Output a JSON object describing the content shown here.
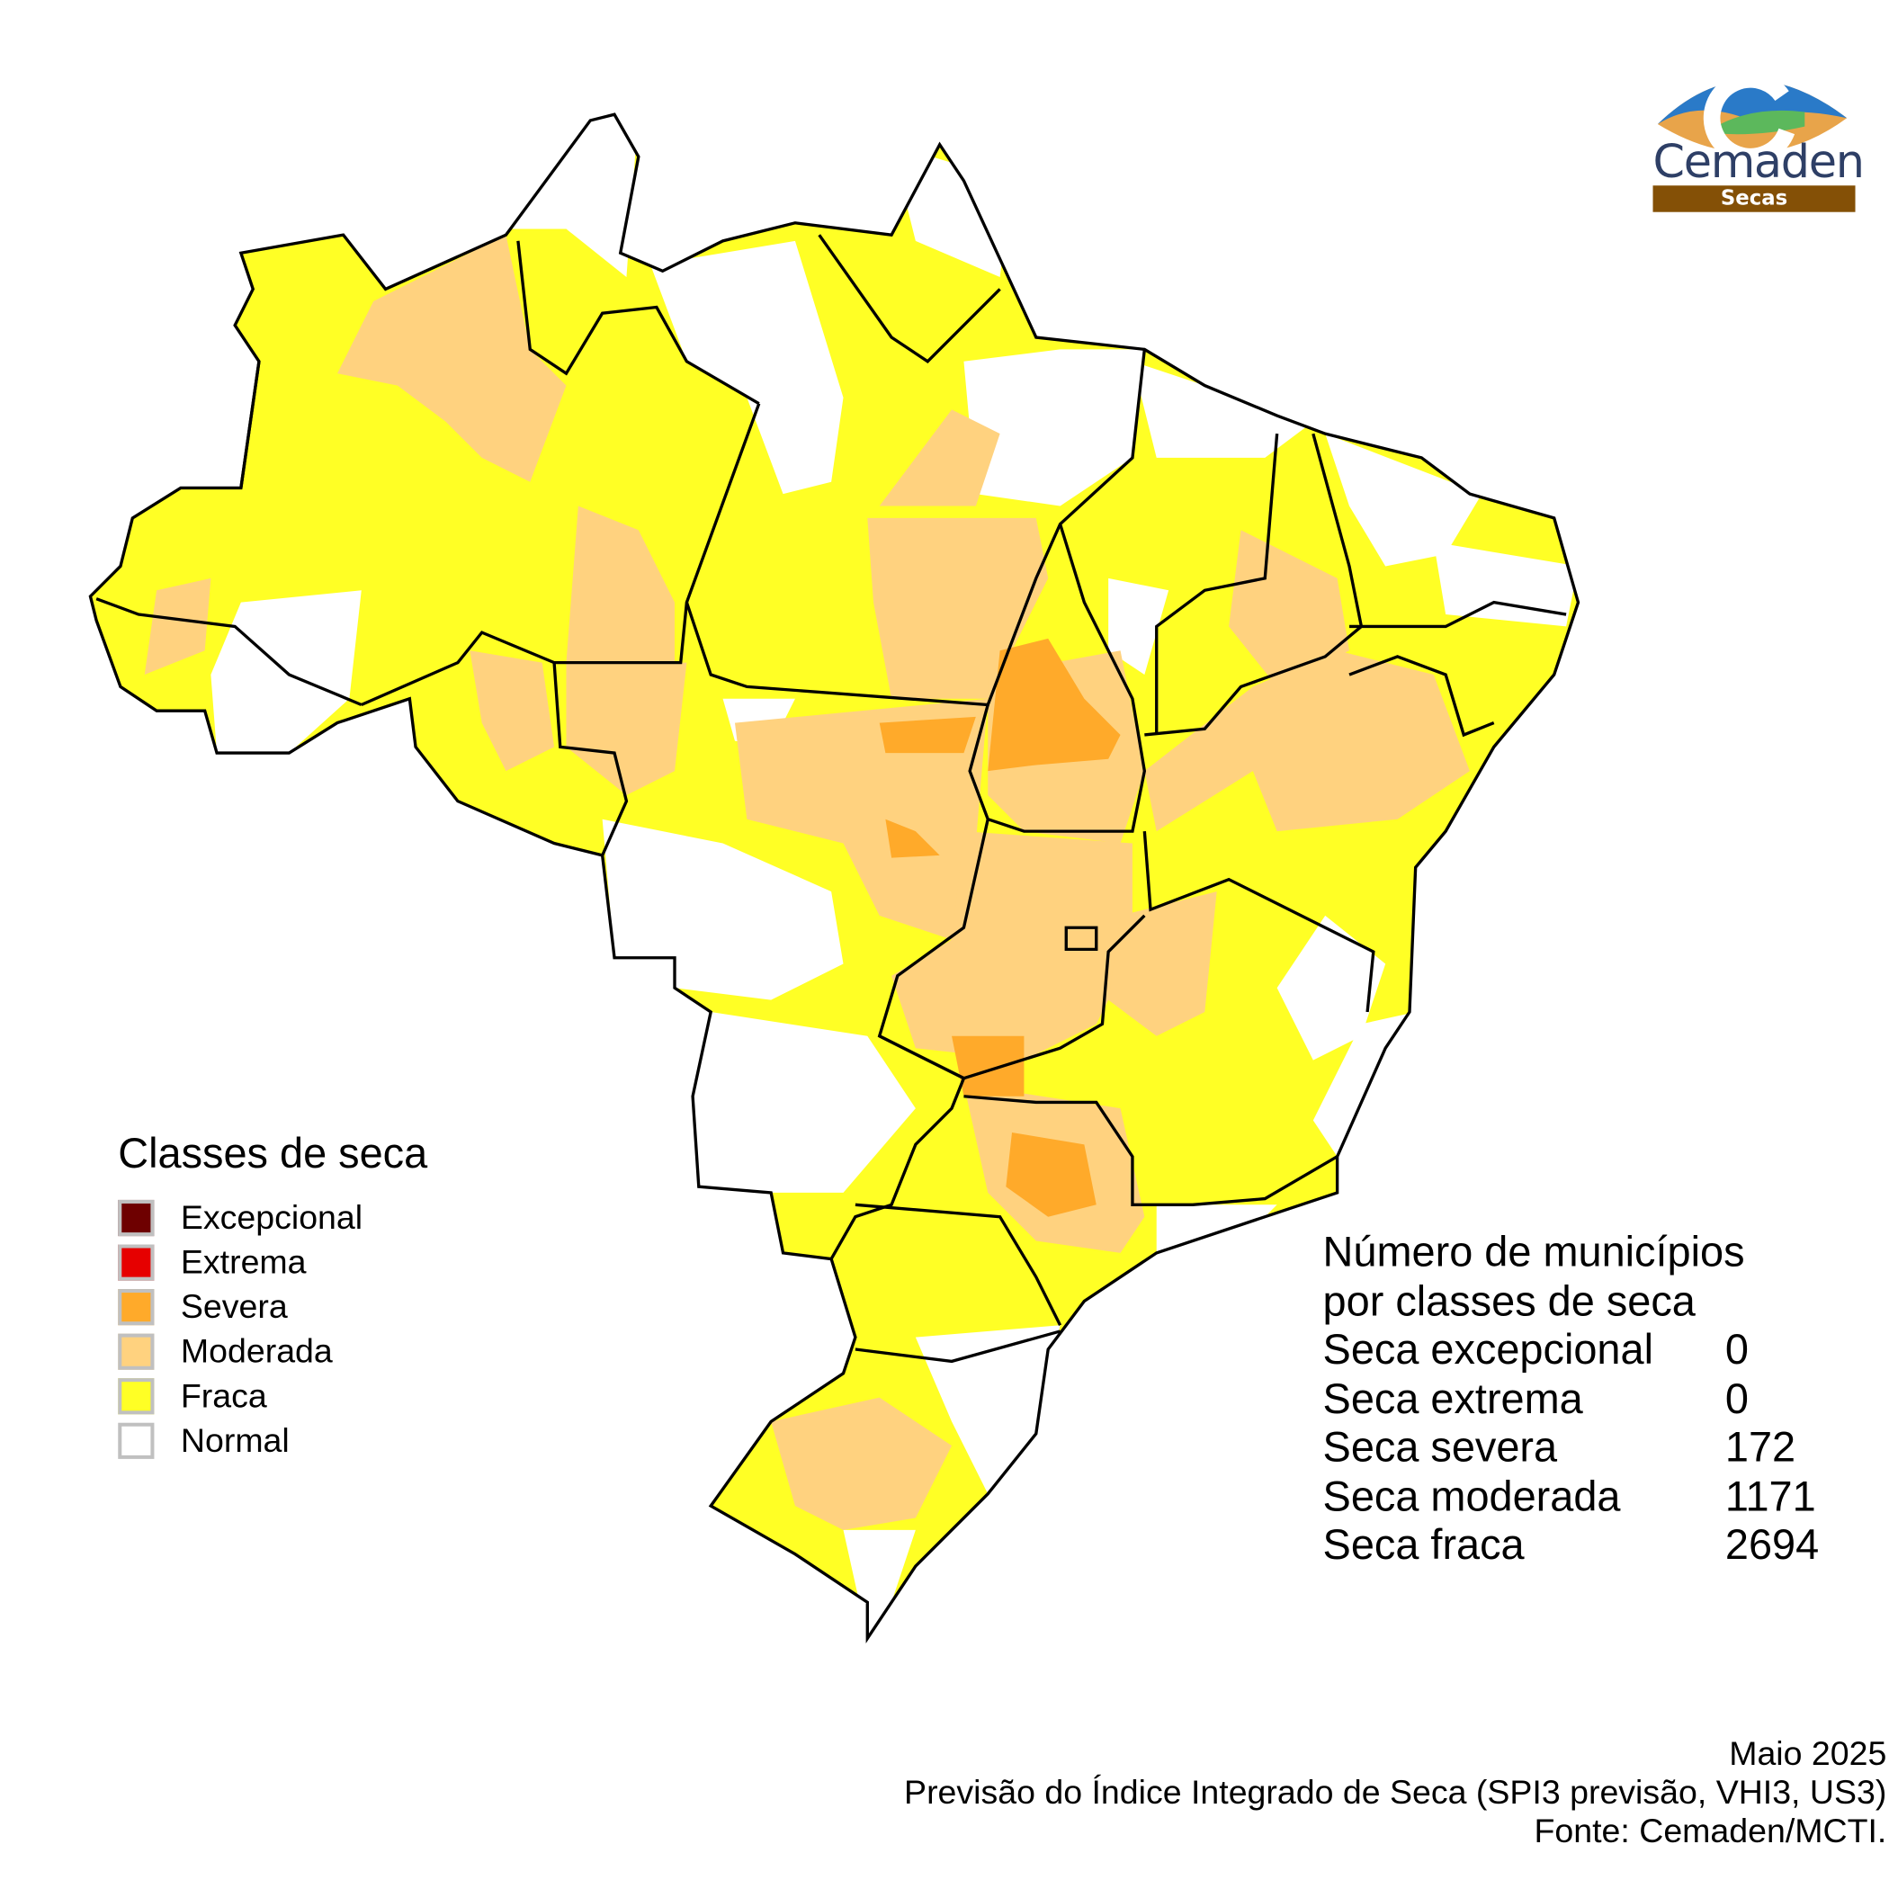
{
  "logo": {
    "name": "Cemaden",
    "subtitle": "Secas"
  },
  "legend": {
    "title": "Classes de seca",
    "items": [
      {
        "label": "Excepcional",
        "color": "#6e0000"
      },
      {
        "label": "Extrema",
        "color": "#e60000"
      },
      {
        "label": "Severa",
        "color": "#ffaa2a"
      },
      {
        "label": "Moderada",
        "color": "#ffd27f"
      },
      {
        "label": "Fraca",
        "color": "#ffff25"
      },
      {
        "label": "Normal",
        "color": "#ffffff"
      }
    ]
  },
  "stats": {
    "title_line1": "Número de municípios",
    "title_line2": "por classes de seca",
    "rows": [
      {
        "label": "Seca excepcional",
        "value": "0"
      },
      {
        "label": "Seca extrema",
        "value": "0"
      },
      {
        "label": "Seca severa",
        "value": "172"
      },
      {
        "label": "Seca moderada",
        "value": "1171"
      },
      {
        "label": "Seca fraca",
        "value": "2694"
      }
    ]
  },
  "footer": {
    "date": "Maio 2025",
    "title": "Previsão do Índice Integrado de Seca (SPI3 previsão, VHI3, US3)",
    "source": "Fonte: Cemaden/MCTI."
  }
}
